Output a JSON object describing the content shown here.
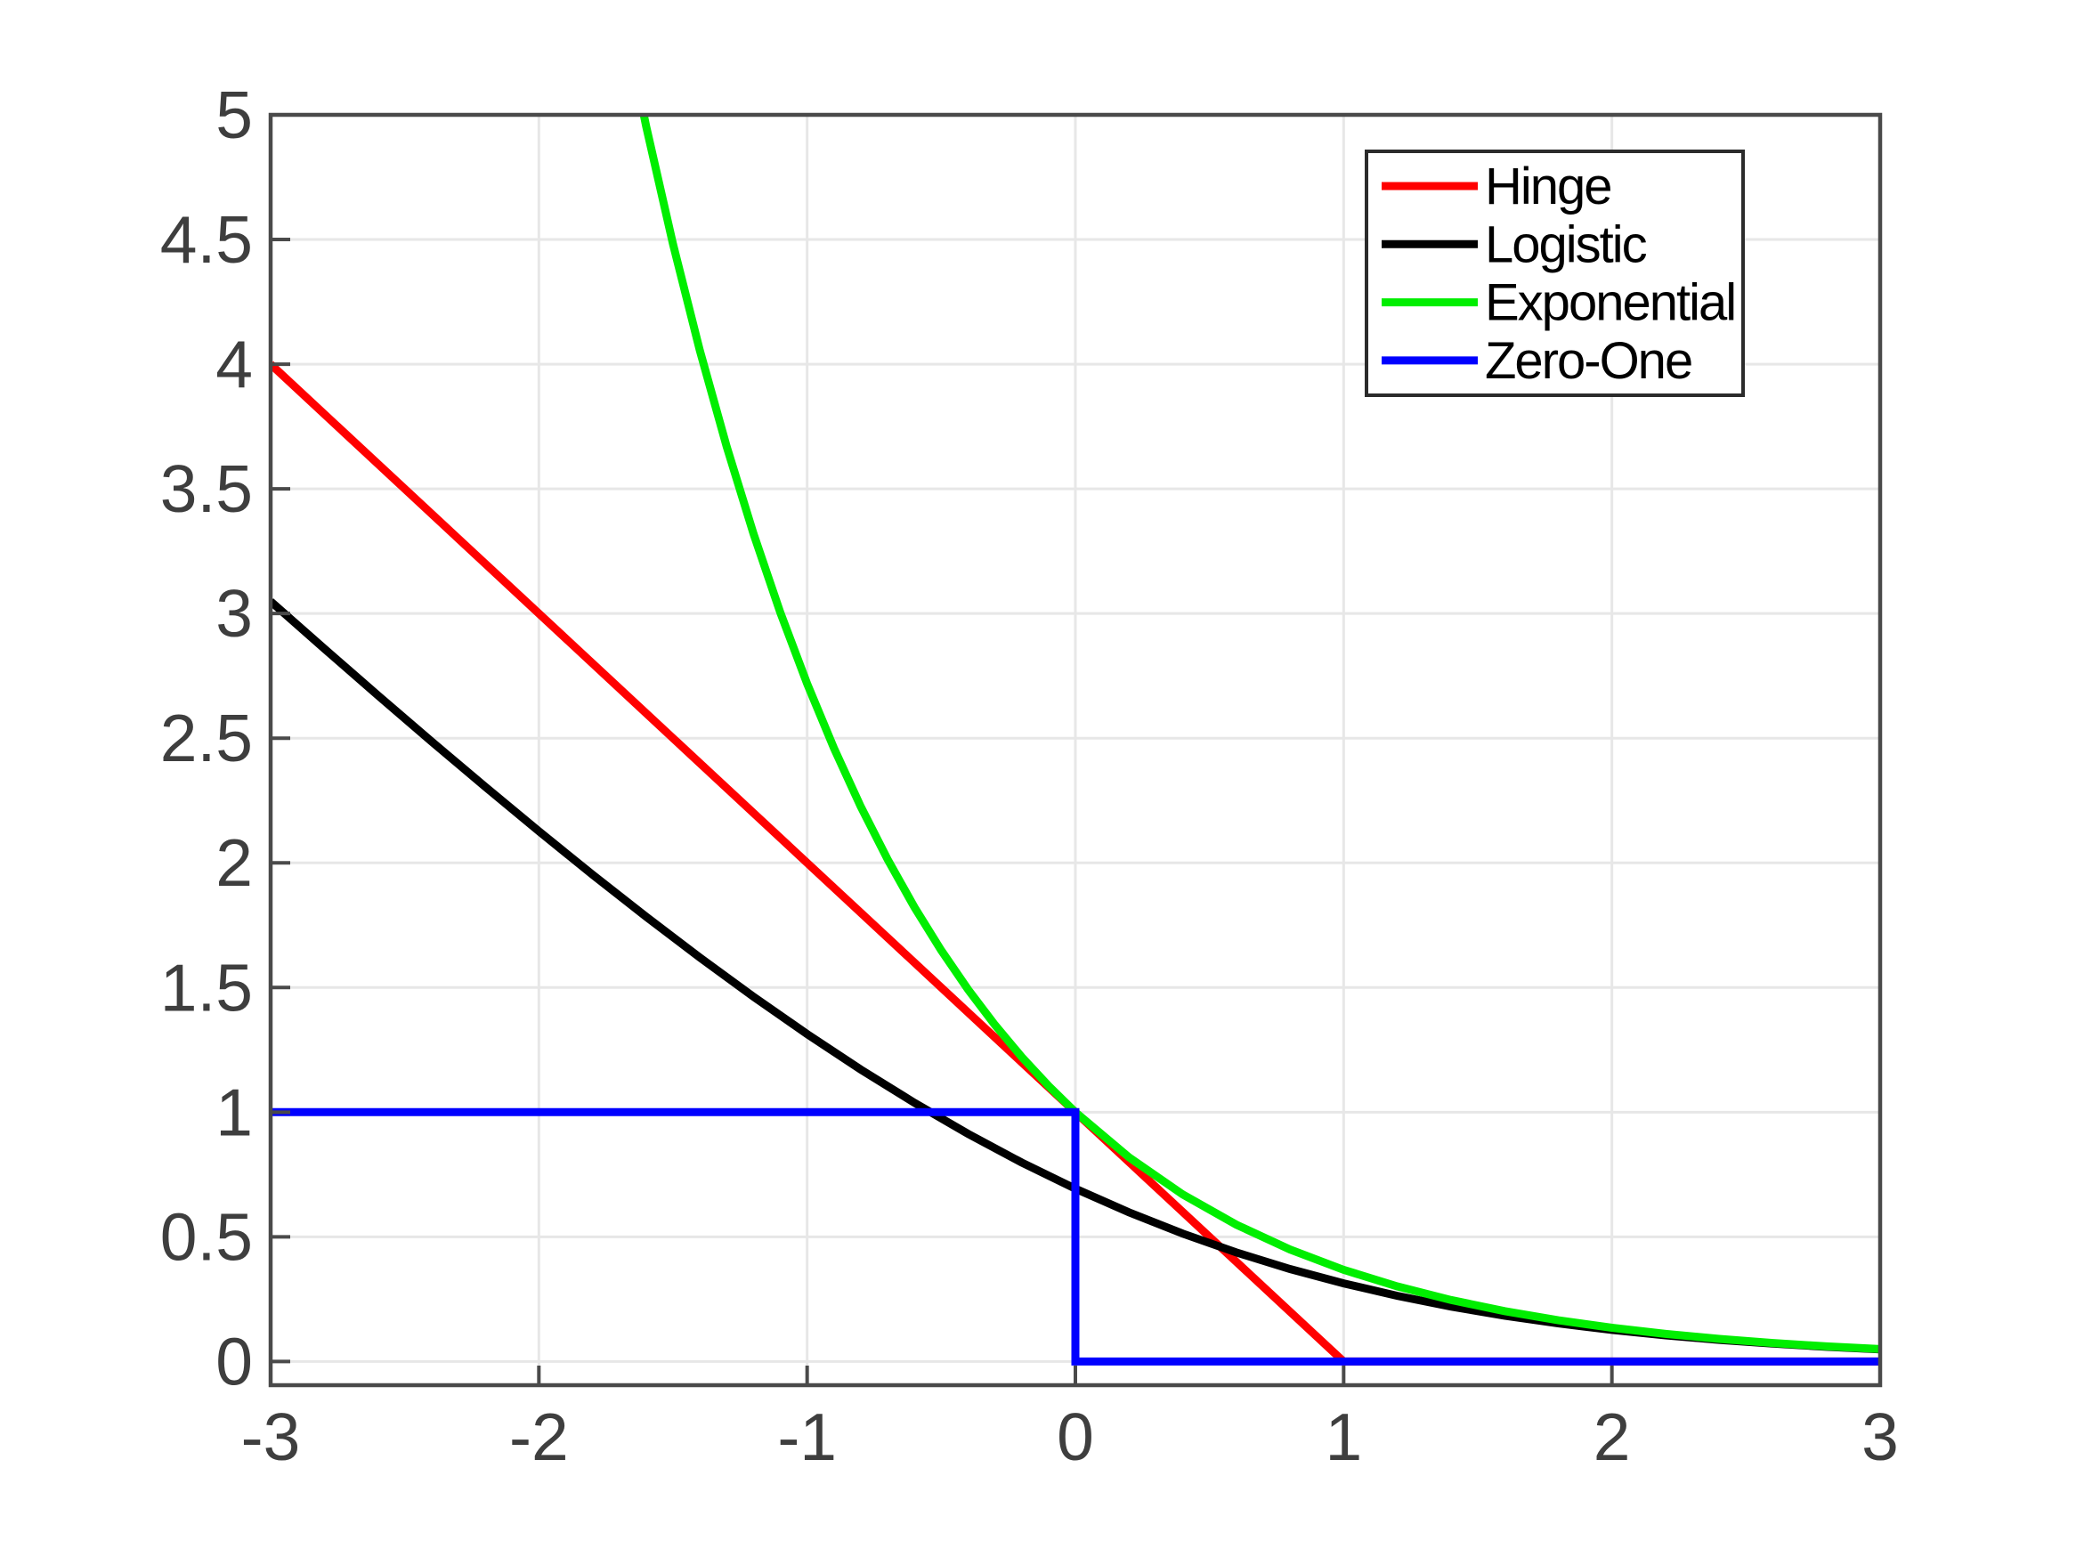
{
  "figure": {
    "background": "#ffffff",
    "axis_color": "#4a4a4a",
    "tick_label_color": "#3e3e3e",
    "grid_color": "#e7e7e7",
    "legend_background": "#ffffff",
    "legend_border_color": "#2b2b2b",
    "legend_text_color": "#000000"
  },
  "chart_data": {
    "type": "line",
    "title": "",
    "xlabel": "",
    "ylabel": "",
    "xlim": [
      -3,
      3
    ],
    "ylim": [
      -0.095,
      5
    ],
    "grid": true,
    "x_ticks": [
      -3,
      -2,
      -1,
      0,
      1,
      2,
      3
    ],
    "x_tick_labels": [
      "-3",
      "-2",
      "-1",
      "0",
      "1",
      "2",
      "3"
    ],
    "y_ticks": [
      0,
      0.5,
      1,
      1.5,
      2,
      2.5,
      3,
      3.5,
      4,
      4.5,
      5
    ],
    "y_tick_labels": [
      "0",
      "0.5",
      "1",
      "1.5",
      "2",
      "2.5",
      "3",
      "3.5",
      "4",
      "4.5",
      "5"
    ],
    "legend_position": "northeast",
    "legend_entries": [
      "Hinge",
      "Logistic",
      "Exponential",
      "Zero-One"
    ],
    "series": [
      {
        "name": "Hinge",
        "color": "#ff0000",
        "line_width": 9,
        "points": [
          [
            -3,
            4
          ],
          [
            1,
            0
          ],
          [
            3,
            0
          ]
        ]
      },
      {
        "name": "Logistic",
        "color": "#000000",
        "line_width": 9,
        "points": [
          [
            -3,
            3.0486
          ],
          [
            -2.8,
            2.859
          ],
          [
            -2.6,
            2.6717
          ],
          [
            -2.4,
            2.4868
          ],
          [
            -2.2,
            2.3051
          ],
          [
            -2,
            2.1269
          ],
          [
            -1.8,
            1.9528
          ],
          [
            -1.6,
            1.7839
          ],
          [
            -1.4,
            1.6204
          ],
          [
            -1.2,
            1.4633
          ],
          [
            -1,
            1.3133
          ],
          [
            -0.8,
            1.1711
          ],
          [
            -0.6,
            1.0375
          ],
          [
            -0.4,
            0.913
          ],
          [
            -0.2,
            0.7981
          ],
          [
            0,
            0.6931
          ],
          [
            0.2,
            0.5981
          ],
          [
            0.4,
            0.513
          ],
          [
            0.6,
            0.4375
          ],
          [
            0.8,
            0.3711
          ],
          [
            1,
            0.3133
          ],
          [
            1.2,
            0.2633
          ],
          [
            1.4,
            0.2204
          ],
          [
            1.6,
            0.1839
          ],
          [
            1.8,
            0.1528
          ],
          [
            2,
            0.1269
          ],
          [
            2.2,
            0.1051
          ],
          [
            2.4,
            0.0868
          ],
          [
            2.6,
            0.0717
          ],
          [
            2.8,
            0.059
          ],
          [
            3,
            0.0486
          ]
        ]
      },
      {
        "name": "Exponential",
        "color": "#00ee00",
        "line_width": 9,
        "points": [
          [
            -1.7,
            5.474
          ],
          [
            -1.6,
            4.953
          ],
          [
            -1.5,
            4.4817
          ],
          [
            -1.4,
            4.0552
          ],
          [
            -1.3,
            3.6693
          ],
          [
            -1.2,
            3.3201
          ],
          [
            -1.1,
            3.0042
          ],
          [
            -1,
            2.7183
          ],
          [
            -0.9,
            2.4596
          ],
          [
            -0.8,
            2.2255
          ],
          [
            -0.7,
            2.0137
          ],
          [
            -0.6,
            1.8221
          ],
          [
            -0.5,
            1.6487
          ],
          [
            -0.4,
            1.4918
          ],
          [
            -0.3,
            1.3499
          ],
          [
            -0.2,
            1.2214
          ],
          [
            -0.1,
            1.1052
          ],
          [
            0,
            1
          ],
          [
            0.2,
            0.8187
          ],
          [
            0.4,
            0.6703
          ],
          [
            0.6,
            0.5488
          ],
          [
            0.8,
            0.4493
          ],
          [
            1,
            0.3679
          ],
          [
            1.2,
            0.3012
          ],
          [
            1.4,
            0.2466
          ],
          [
            1.6,
            0.2019
          ],
          [
            1.8,
            0.1653
          ],
          [
            2,
            0.1353
          ],
          [
            2.2,
            0.1108
          ],
          [
            2.4,
            0.0907
          ],
          [
            2.6,
            0.0743
          ],
          [
            2.8,
            0.0608
          ],
          [
            3,
            0.0498
          ]
        ]
      },
      {
        "name": "Zero-One",
        "color": "#0000ff",
        "line_width": 9,
        "points": [
          [
            -3,
            1
          ],
          [
            0,
            1
          ],
          [
            0,
            0
          ],
          [
            3,
            0
          ]
        ]
      }
    ]
  }
}
